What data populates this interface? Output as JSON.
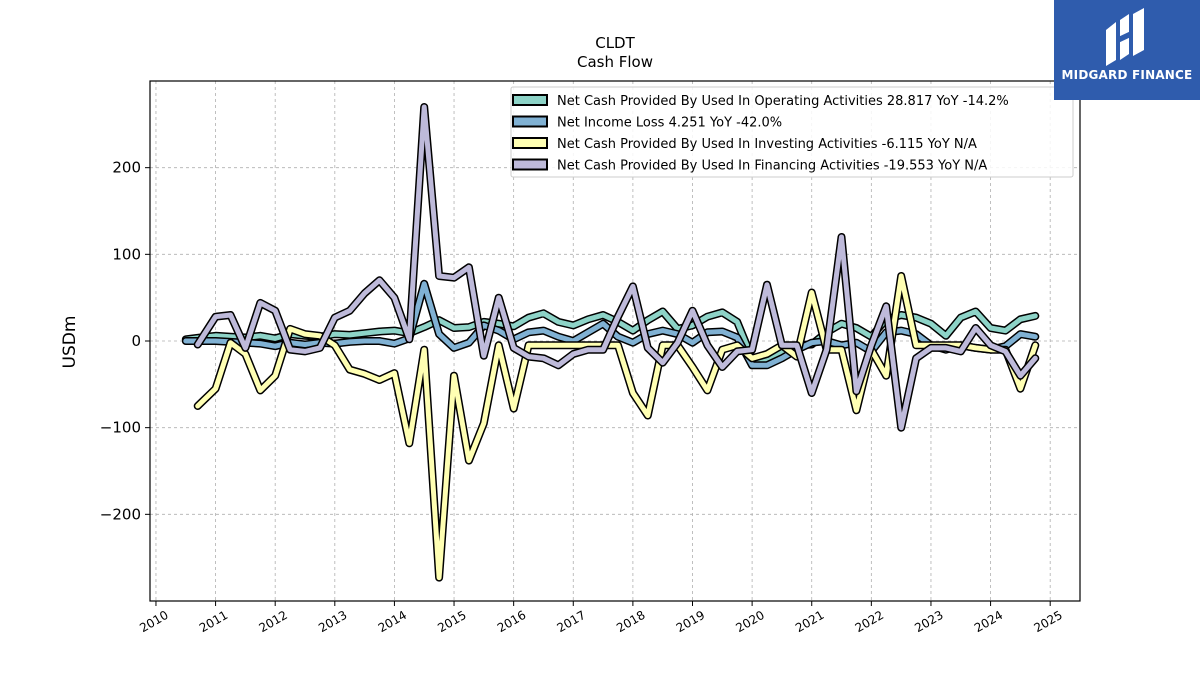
{
  "branding": {
    "logo_text": "MIDGARD FINANCE",
    "logo_color": "#2f5cad"
  },
  "chart_data": {
    "type": "line",
    "title": "CLDT",
    "subtitle": "Cash Flow",
    "xlabel": "",
    "ylabel": "USDm",
    "xlim": [
      2009.9,
      2025.5
    ],
    "ylim": [
      -300,
      300
    ],
    "xticks": [
      "2010",
      "2011",
      "2012",
      "2013",
      "2014",
      "2015",
      "2016",
      "2017",
      "2018",
      "2019",
      "2020",
      "2021",
      "2022",
      "2023",
      "2024",
      "2025"
    ],
    "yticks": [
      -200,
      -100,
      0,
      100,
      200
    ],
    "ytick_labels": [
      "−200",
      "−100",
      "0",
      "100",
      "200"
    ],
    "grid": true,
    "legend_position": "top-right",
    "series": [
      {
        "name": "Net Cash Provided By Used In Operating Activities",
        "legend": "Net Cash Provided By Used In Operating Activities  28.817 YoY -14.2%",
        "color": "#8dd3c7",
        "x": [
          2010.5,
          2010.75,
          2011.0,
          2011.25,
          2011.5,
          2011.75,
          2012.0,
          2012.25,
          2012.5,
          2012.75,
          2013.0,
          2013.25,
          2013.5,
          2013.75,
          2014.0,
          2014.25,
          2014.5,
          2014.75,
          2015.0,
          2015.25,
          2015.5,
          2015.75,
          2016.0,
          2016.25,
          2016.5,
          2016.75,
          2017.0,
          2017.25,
          2017.5,
          2017.75,
          2018.0,
          2018.25,
          2018.5,
          2018.75,
          2019.0,
          2019.25,
          2019.5,
          2019.75,
          2020.0,
          2020.25,
          2020.5,
          2020.75,
          2021.0,
          2021.25,
          2021.5,
          2021.75,
          2022.0,
          2022.25,
          2022.5,
          2022.75,
          2023.0,
          2023.25,
          2023.5,
          2023.75,
          2024.0,
          2024.25,
          2024.5,
          2024.75
        ],
        "values": [
          2,
          4,
          6,
          5,
          4,
          6,
          3,
          8,
          6,
          5,
          8,
          7,
          9,
          11,
          12,
          9,
          16,
          24,
          15,
          16,
          22,
          20,
          17,
          27,
          32,
          22,
          18,
          25,
          30,
          22,
          12,
          24,
          34,
          14,
          18,
          28,
          33,
          22,
          -20,
          -23,
          -12,
          -5,
          -4,
          10,
          20,
          15,
          5,
          25,
          30,
          27,
          20,
          6,
          27,
          34,
          15,
          12,
          25,
          29
        ]
      },
      {
        "name": "Net Income Loss",
        "legend": "Net Income Loss  4.251 YoY -42.0%",
        "color": "#80b1d3",
        "x": [
          2010.5,
          2010.75,
          2011.0,
          2011.25,
          2011.5,
          2011.75,
          2012.0,
          2012.25,
          2012.5,
          2012.75,
          2013.0,
          2013.25,
          2013.5,
          2013.75,
          2014.0,
          2014.25,
          2014.5,
          2014.75,
          2015.0,
          2015.25,
          2015.5,
          2015.75,
          2016.0,
          2016.25,
          2016.5,
          2016.75,
          2017.0,
          2017.25,
          2017.5,
          2017.75,
          2018.0,
          2018.25,
          2018.5,
          2018.75,
          2019.0,
          2019.25,
          2019.5,
          2019.75,
          2020.0,
          2020.25,
          2020.5,
          2020.75,
          2021.0,
          2021.25,
          2021.5,
          2021.75,
          2022.0,
          2022.25,
          2022.5,
          2022.75,
          2023.0,
          2023.25,
          2023.5,
          2023.75,
          2024.0,
          2024.25,
          2024.5,
          2024.75
        ],
        "values": [
          0,
          0,
          0,
          -1,
          -2,
          -3,
          -6,
          -2,
          -4,
          -2,
          -3,
          -1,
          0,
          0,
          -3,
          3,
          66,
          8,
          -8,
          -2,
          18,
          12,
          2,
          10,
          12,
          5,
          0,
          10,
          20,
          5,
          -2,
          8,
          12,
          8,
          -2,
          10,
          11,
          4,
          -28,
          -28,
          -20,
          -10,
          -2,
          0,
          -5,
          -2,
          -12,
          10,
          12,
          8,
          -5,
          -10,
          -5,
          -8,
          -10,
          -6,
          8,
          5
        ]
      },
      {
        "name": "Net Cash Provided By Used In Investing Activities",
        "legend": "Net Cash Provided By Used In Investing Activities  -6.115 YoY N/A",
        "color": "#ffffb3",
        "x": [
          2010.7,
          2011.0,
          2011.25,
          2011.5,
          2011.75,
          2012.0,
          2012.25,
          2012.5,
          2012.75,
          2013.0,
          2013.25,
          2013.5,
          2013.75,
          2014.0,
          2014.25,
          2014.5,
          2014.75,
          2015.0,
          2015.25,
          2015.5,
          2015.75,
          2016.0,
          2016.25,
          2016.5,
          2016.75,
          2017.0,
          2017.25,
          2017.5,
          2017.75,
          2018.0,
          2018.25,
          2018.5,
          2018.75,
          2019.0,
          2019.25,
          2019.5,
          2019.75,
          2020.0,
          2020.25,
          2020.5,
          2020.75,
          2021.0,
          2021.25,
          2021.5,
          2021.75,
          2022.0,
          2022.25,
          2022.5,
          2022.75,
          2023.0,
          2023.25,
          2023.5,
          2023.75,
          2024.0,
          2024.25,
          2024.5,
          2024.75
        ],
        "values": [
          -75,
          -55,
          -2,
          -15,
          -57,
          -40,
          14,
          8,
          6,
          -5,
          -33,
          -38,
          -45,
          -37,
          -118,
          -10,
          -273,
          -40,
          -138,
          -95,
          -5,
          -78,
          -5,
          -5,
          -5,
          -5,
          -5,
          -5,
          -5,
          -60,
          -86,
          -5,
          -5,
          -30,
          -57,
          -10,
          -5,
          -20,
          -15,
          -5,
          -18,
          56,
          -10,
          -10,
          -80,
          -10,
          -40,
          75,
          -5,
          -5,
          -5,
          -5,
          -8,
          -10,
          -10,
          -55,
          -5
        ]
      },
      {
        "name": "Net Cash Provided By Used In Financing Activities",
        "legend": "Net Cash Provided By Used In Financing Activities  -19.553 YoY N/A",
        "color": "#bebada",
        "x": [
          2010.7,
          2011.0,
          2011.25,
          2011.5,
          2011.75,
          2012.0,
          2012.25,
          2012.5,
          2012.75,
          2013.0,
          2013.25,
          2013.5,
          2013.75,
          2014.0,
          2014.25,
          2014.5,
          2014.75,
          2015.0,
          2015.25,
          2015.5,
          2015.75,
          2016.0,
          2016.25,
          2016.5,
          2016.75,
          2017.0,
          2017.25,
          2017.5,
          2017.75,
          2018.0,
          2018.25,
          2018.5,
          2018.75,
          2019.0,
          2019.25,
          2019.5,
          2019.75,
          2020.0,
          2020.25,
          2020.5,
          2020.75,
          2021.0,
          2021.25,
          2021.5,
          2021.75,
          2022.0,
          2022.25,
          2022.5,
          2022.75,
          2023.0,
          2023.25,
          2023.5,
          2023.75,
          2024.0,
          2024.25,
          2024.5,
          2024.75
        ],
        "values": [
          -4,
          28,
          30,
          -8,
          44,
          35,
          -10,
          -12,
          -8,
          27,
          35,
          55,
          70,
          50,
          2,
          270,
          75,
          73,
          85,
          -17,
          50,
          -8,
          -18,
          -20,
          -28,
          -15,
          -10,
          -10,
          28,
          63,
          -8,
          -25,
          -2,
          35,
          -5,
          -30,
          -12,
          -10,
          65,
          -5,
          -5,
          -60,
          -10,
          120,
          -58,
          -5,
          40,
          -100,
          -20,
          -8,
          -8,
          -12,
          15,
          -5,
          -12,
          -40,
          -20
        ]
      }
    ]
  }
}
